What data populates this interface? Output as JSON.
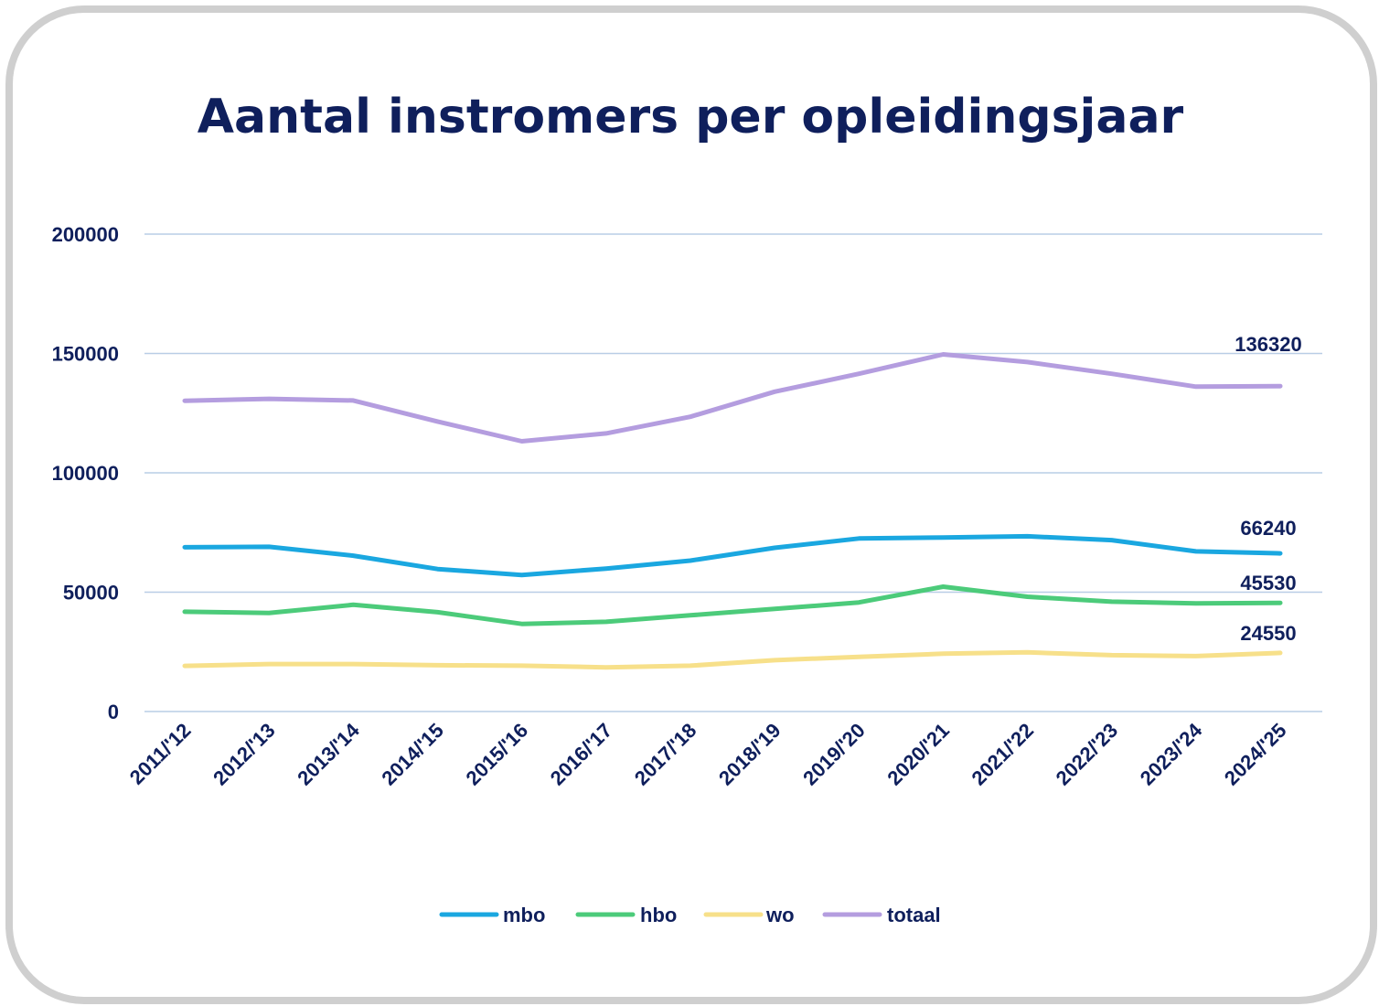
{
  "chart_data": {
    "type": "line",
    "title": "Aantal instromers per opleidingsjaar",
    "xlabel": "",
    "ylabel": "",
    "ylim": [
      0,
      200000
    ],
    "yticks": [
      0,
      50000,
      100000,
      150000,
      200000
    ],
    "categories": [
      "2011/'12",
      "2012/'13",
      "2013/'14",
      "2014/'15",
      "2015/'16",
      "2016/'17",
      "2017/'18",
      "2018/'19",
      "2019/'20",
      "2020/'21",
      "2021/'22",
      "2022/'23",
      "2023/'24",
      "2024/'25"
    ],
    "grid": true,
    "legend": "bottom",
    "series": [
      {
        "name": "mbo",
        "color": "#1aa7e0",
        "values": [
          68800,
          69000,
          65300,
          59700,
          57200,
          59900,
          63200,
          68600,
          72500,
          72900,
          73400,
          71800,
          67100,
          66240
        ],
        "end_label": "66240"
      },
      {
        "name": "hbo",
        "color": "#4ccb7a",
        "values": [
          41800,
          41300,
          44700,
          41600,
          36700,
          37600,
          40300,
          43000,
          45700,
          52300,
          48100,
          46000,
          45300,
          45530
        ],
        "end_label": "45530"
      },
      {
        "name": "wo",
        "color": "#f7e08a",
        "values": [
          19100,
          19900,
          19900,
          19400,
          19200,
          18500,
          19200,
          21500,
          22900,
          24200,
          24800,
          23600,
          23200,
          24550
        ],
        "end_label": "24550"
      },
      {
        "name": "totaal",
        "color": "#b49ddf",
        "values": [
          130200,
          131000,
          130300,
          121500,
          113200,
          116500,
          123500,
          134000,
          141500,
          149600,
          146400,
          141500,
          136100,
          136320
        ],
        "end_label": "136320"
      }
    ]
  }
}
